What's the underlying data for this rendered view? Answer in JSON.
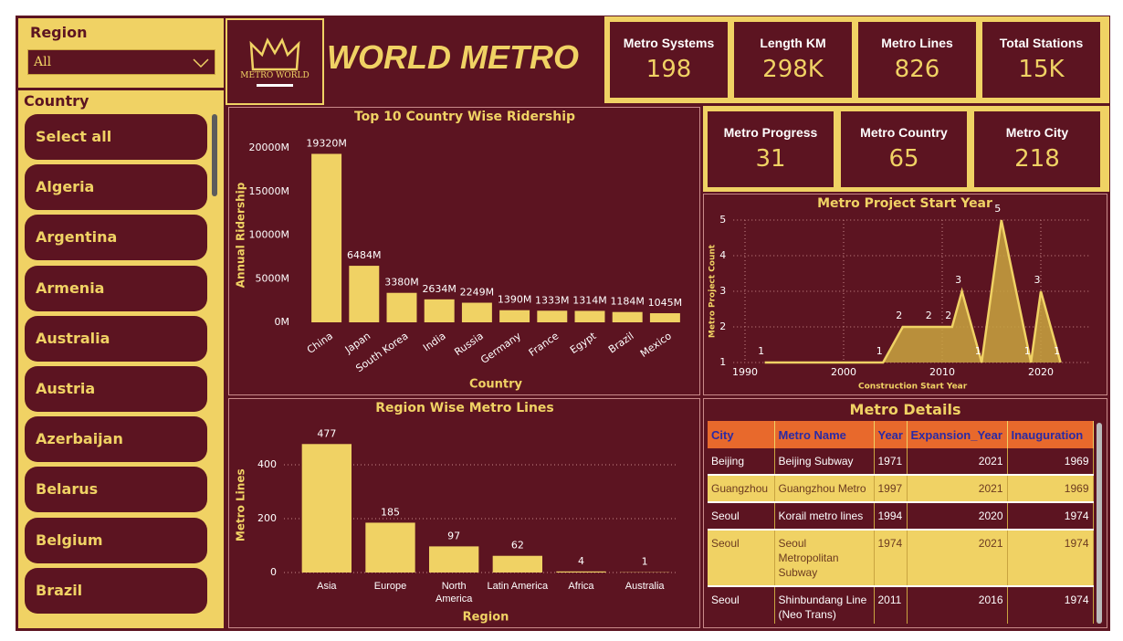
{
  "filters": {
    "region": {
      "label": "Region",
      "selected": "All"
    },
    "country": {
      "label": "Country",
      "items": [
        "Select all",
        "Algeria",
        "Argentina",
        "Armenia",
        "Australia",
        "Austria",
        "Azerbaijan",
        "Belarus",
        "Belgium",
        "Brazil"
      ]
    }
  },
  "header": {
    "logo": "METRO WORLD",
    "title": "WORLD METRO"
  },
  "kpis": [
    {
      "label": "Metro Systems",
      "value": "198"
    },
    {
      "label": "Length KM",
      "value": "298K"
    },
    {
      "label": "Metro Lines",
      "value": "826"
    },
    {
      "label": "Total Stations",
      "value": "15K"
    },
    {
      "label": "Metro Progress",
      "value": "31"
    },
    {
      "label": "Metro Country",
      "value": "65"
    },
    {
      "label": "Metro City",
      "value": "218"
    }
  ],
  "chart_data": [
    {
      "type": "bar",
      "title": "Top 10 Country Wise Ridership",
      "x_label": "Country",
      "y_label": "Annual Ridership",
      "categories": [
        "China",
        "Japan",
        "South Korea",
        "India",
        "Russia",
        "Germany",
        "France",
        "Egypt",
        "Brazil",
        "Mexico"
      ],
      "values": [
        19320,
        6484,
        3380,
        2634,
        2249,
        1390,
        1333,
        1314,
        1184,
        1045
      ],
      "value_labels": [
        "19320M",
        "6484M",
        "3380M",
        "2634M",
        "2249M",
        "1390M",
        "1333M",
        "1314M",
        "1184M",
        "1045M"
      ],
      "color": "#f0d264",
      "ylim": [
        0,
        20000
      ],
      "yticks": [
        {
          "value": 0,
          "label": "0M"
        },
        {
          "value": 5000,
          "label": "5000M"
        },
        {
          "value": 10000,
          "label": "10000M"
        },
        {
          "value": 15000,
          "label": "15000M"
        },
        {
          "value": 20000,
          "label": "20000M"
        }
      ],
      "grid": false
    },
    {
      "type": "area",
      "title": "Metro Project Start Year",
      "x_label": "Construction Start Year",
      "y_label": "Metro Project Count",
      "x": [
        1992,
        2004,
        2006,
        2009,
        2011,
        2012,
        2014,
        2016,
        2019,
        2020,
        2022
      ],
      "values": [
        1,
        1,
        2,
        2,
        2,
        3,
        1,
        5,
        1,
        3,
        1
      ],
      "color": "#f0d264",
      "xlim": [
        1989,
        2025
      ],
      "xticks": [
        1990,
        2000,
        2010,
        2020
      ],
      "ylim": [
        1,
        5
      ],
      "yticks": [
        1,
        2,
        3,
        4,
        5
      ],
      "grid": true
    },
    {
      "type": "bar",
      "title": "Region Wise Metro Lines",
      "x_label": "Region",
      "y_label": "Metro Lines",
      "categories": [
        "Asia",
        "Europe",
        "North America",
        "Latin America",
        "Africa",
        "Australia"
      ],
      "values": [
        477,
        185,
        97,
        62,
        4,
        1
      ],
      "color": "#f0d264",
      "ylim": [
        0,
        500
      ],
      "yticks": [
        0,
        200,
        400
      ],
      "grid": true
    }
  ],
  "table": {
    "title": "Metro Details",
    "columns": [
      "City",
      "Metro Name",
      "Year",
      "Expansion_Year",
      "Inauguration"
    ],
    "rows": [
      [
        "Beijing",
        "Beijing Subway",
        "1971",
        "2021",
        "1969"
      ],
      [
        "Guangzhou",
        "Guangzhou Metro",
        "1997",
        "2021",
        "1969"
      ],
      [
        "Seoul",
        "Korail metro lines",
        "1994",
        "2020",
        "1974"
      ],
      [
        "Seoul",
        "Seoul Metropolitan Subway",
        "1974",
        "2021",
        "1974"
      ],
      [
        "Seoul",
        "Shinbundang Line (Neo Trans)",
        "2011",
        "2016",
        "1974"
      ]
    ]
  }
}
